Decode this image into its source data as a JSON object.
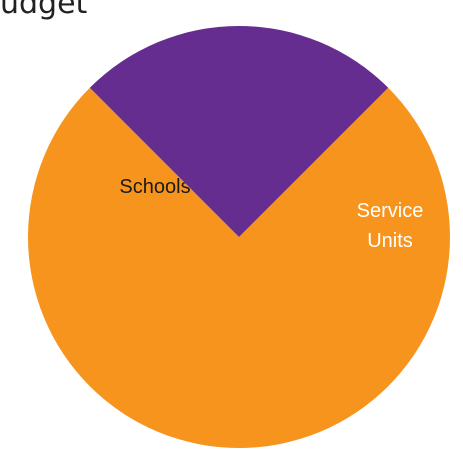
{
  "chart_data": {
    "type": "pie",
    "title": "udget",
    "slices": [
      {
        "label": [
          "Schools"
        ],
        "value": 75,
        "color": "#F7941D"
      },
      {
        "label": [
          "Service",
          "Units"
        ],
        "value": 25,
        "color": "#662D91"
      }
    ],
    "start_angle_deg": -45,
    "direction": "clockwise"
  }
}
